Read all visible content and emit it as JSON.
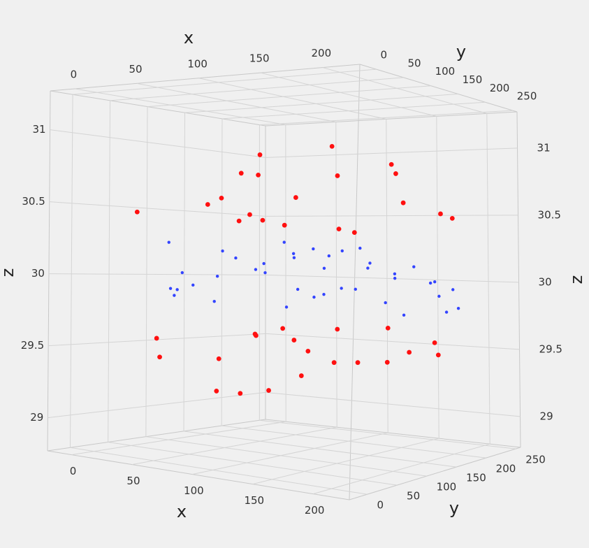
{
  "chart_data": {
    "type": "scatter3d",
    "x_label": "x",
    "y_label": "y",
    "z_label": "z",
    "xlim": [
      -20,
      230
    ],
    "ylim": [
      -30,
      258
    ],
    "zlim": [
      28.77,
      31.27
    ],
    "xticks": [
      0,
      50,
      100,
      150,
      200
    ],
    "yticks": [
      0,
      50,
      100,
      150,
      200,
      250
    ],
    "zticks": [
      29,
      29.5,
      30,
      30.5,
      31
    ],
    "grid": true,
    "series": [
      {
        "color": "#3344ff",
        "x": [
          12,
          45,
          80,
          110,
          150,
          190,
          210,
          30,
          60,
          95,
          130,
          170,
          200,
          20,
          55,
          88,
          120,
          160,
          185,
          215,
          5,
          40,
          75,
          105,
          140,
          175,
          205,
          25,
          65,
          100,
          135,
          165,
          195,
          15,
          50,
          85,
          125,
          155,
          180,
          220
        ],
        "y": [
          200,
          30,
          150,
          90,
          220,
          60,
          180,
          120,
          10,
          240,
          50,
          170,
          100,
          80,
          190,
          20,
          130,
          230,
          40,
          160,
          110,
          70,
          210,
          140,
          0,
          250,
          90,
          60,
          180,
          30,
          200,
          120,
          20,
          150,
          240,
          100,
          170,
          50,
          210,
          130
        ],
        "z": [
          30.05,
          29.92,
          30.18,
          29.81,
          30.1,
          30.22,
          29.95,
          30,
          29.88,
          30.12,
          30.25,
          29.76,
          30.03,
          29.9,
          30.15,
          29.85,
          30.08,
          29.98,
          30.2,
          29.8,
          30.02,
          29.94,
          30.17,
          29.87,
          30.11,
          29.79,
          30.06,
          30.24,
          29.91,
          30.14,
          29.83,
          30.09,
          29.97,
          30.19,
          29.86,
          30.04,
          29.93,
          30.21,
          29.89,
          30.01
        ]
      },
      {
        "color": "#ff1010",
        "x": [
          10,
          50,
          90,
          130,
          170,
          210,
          30,
          70,
          110,
          150,
          190,
          20,
          60,
          100,
          140,
          180,
          220,
          40,
          80,
          120,
          15,
          55,
          95,
          135,
          175,
          215,
          35,
          75,
          115,
          155,
          195,
          25,
          65,
          105,
          145,
          185,
          5,
          45,
          85,
          125
        ],
        "y": [
          40,
          200,
          120,
          10,
          230,
          80,
          150,
          60,
          250,
          100,
          20,
          180,
          130,
          70,
          220,
          30,
          160,
          90,
          240,
          0,
          60,
          210,
          110,
          20,
          170,
          140,
          230,
          50,
          190,
          90,
          10,
          160,
          120,
          250,
          40,
          200,
          80,
          150,
          30,
          220
        ],
        "z": [
          30.45,
          30.62,
          30.38,
          30.8,
          30.5,
          30.7,
          30.42,
          30.55,
          30.9,
          30.35,
          30.66,
          30.48,
          30.75,
          30.4,
          30.58,
          30.85,
          30.44,
          30.52,
          30.36,
          30.68,
          29.55,
          29.42,
          29.65,
          29.3,
          29.5,
          29.6,
          29.2,
          29.45,
          29.38,
          29.68,
          29.52,
          29.1,
          29.58,
          29.34,
          29.62,
          29.47,
          29.4,
          29.57,
          29.25,
          29.63
        ]
      }
    ]
  }
}
